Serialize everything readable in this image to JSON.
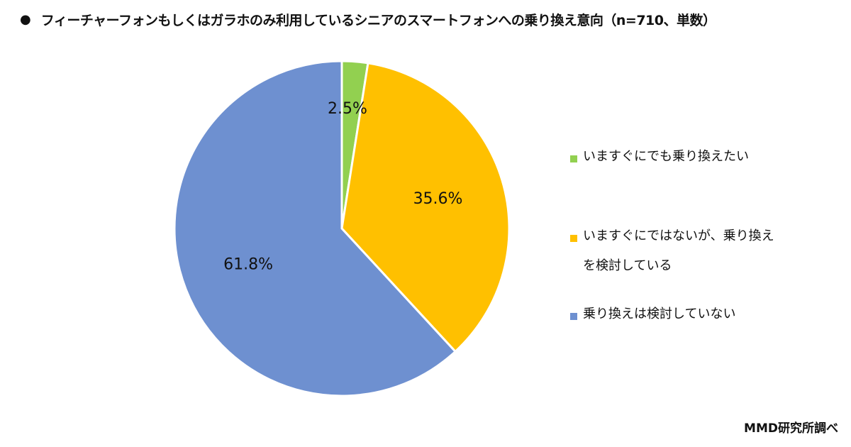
{
  "title": {
    "bullet": "●",
    "text": "フィーチャーフォンもしくはガラホのみ利用しているシニアのスマートフォンへの乗り換え意向（n=710、単数）"
  },
  "source": "MMD研究所調べ",
  "chart_data": {
    "type": "pie",
    "start_angle_deg": 0,
    "direction": "clockwise",
    "slices": [
      {
        "label": "いますぐにでも乗り換えたい",
        "value": 2.5,
        "display": "2.5%",
        "color": "#92D050"
      },
      {
        "label": "いますぐにではないが、乗り換えを検討している",
        "value": 35.6,
        "display": "35.6%",
        "color": "#FFC000"
      },
      {
        "label": "乗り換えは検討していない",
        "value": 61.8,
        "display": "61.8%",
        "color": "#6E90D0"
      }
    ],
    "legend_position": "right"
  }
}
